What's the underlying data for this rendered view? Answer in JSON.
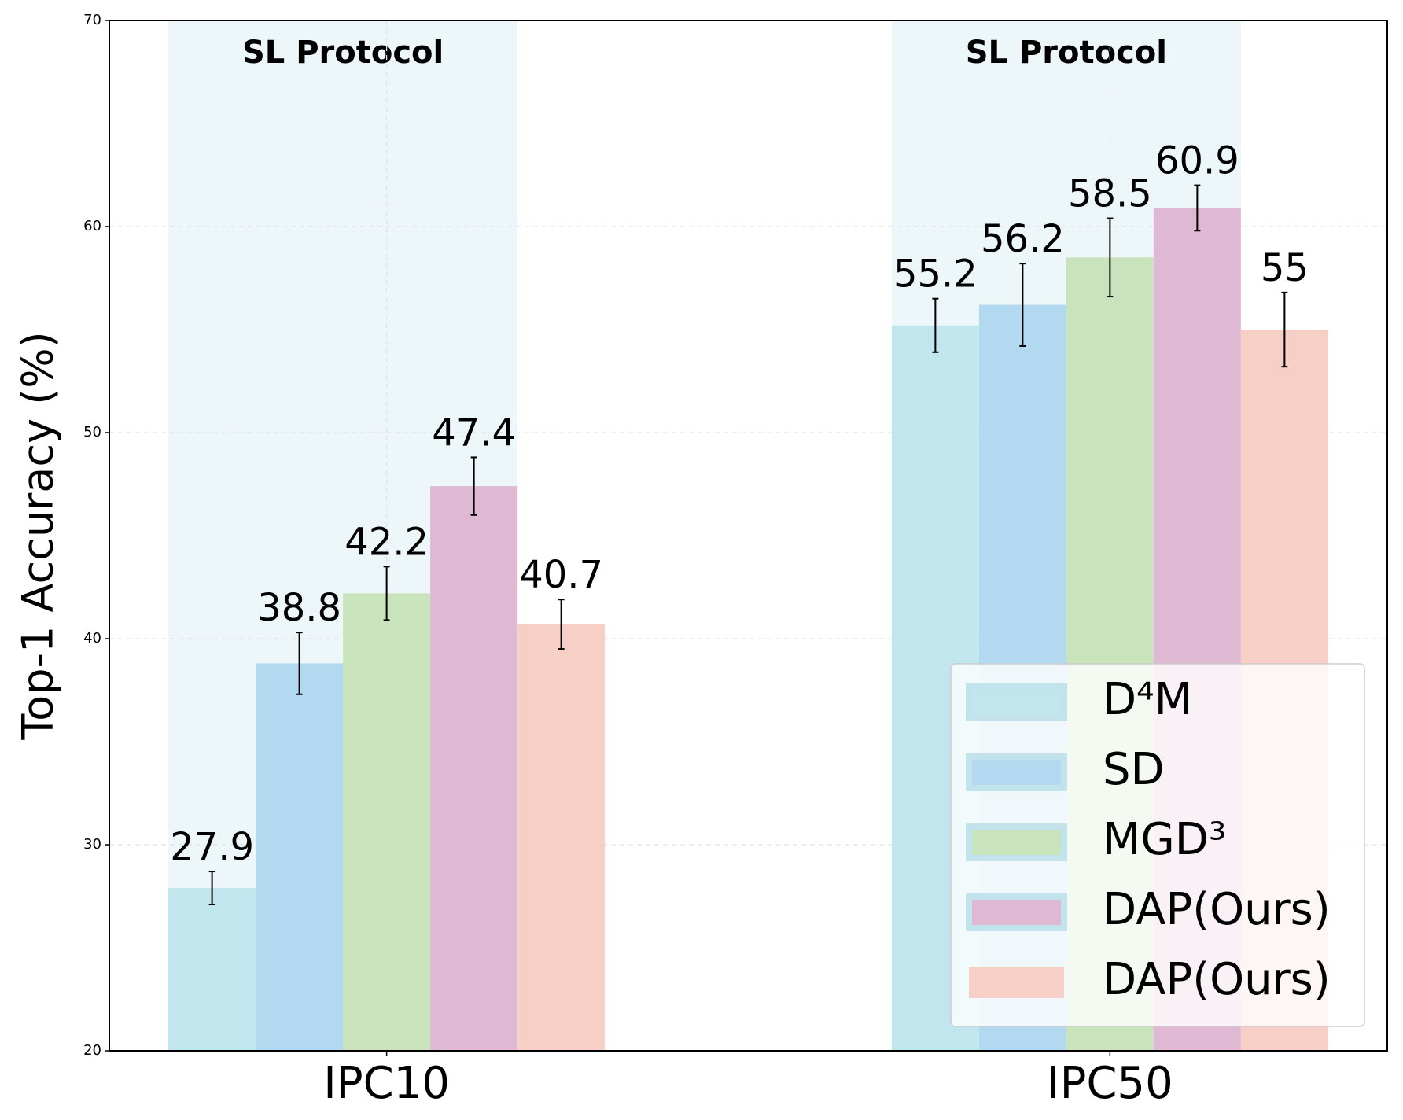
{
  "chart_data": {
    "type": "bar",
    "y_label": "Top-1 Accuracy (%)",
    "categories": [
      "IPC10",
      "IPC50"
    ],
    "series": [
      {
        "name": "D⁴M",
        "color": "#c2e6ee",
        "values": [
          27.9,
          55.2
        ],
        "errors": [
          0.8,
          1.3
        ]
      },
      {
        "name": "SD",
        "color": "#b3d9f0",
        "values": [
          38.8,
          56.2
        ],
        "errors": [
          1.5,
          2.0
        ]
      },
      {
        "name": "MGD³",
        "color": "#c9e3bd",
        "values": [
          42.2,
          58.5
        ],
        "errors": [
          1.3,
          1.9
        ]
      },
      {
        "name": "DAP(Ours)",
        "color": "#dfb8d3",
        "values": [
          47.4,
          60.9
        ],
        "errors": [
          1.4,
          1.1
        ]
      },
      {
        "name": "DAP(Ours)",
        "color": "#f6cfc7",
        "values": [
          40.7,
          55.0
        ],
        "errors": [
          1.2,
          1.8
        ]
      }
    ],
    "annotations": [
      "SL Protocol",
      "SL Protocol"
    ],
    "ylim": [
      20,
      70
    ],
    "yticks": [
      20,
      30,
      40,
      50,
      60,
      70
    ],
    "grid": true,
    "legend": "lower right"
  }
}
